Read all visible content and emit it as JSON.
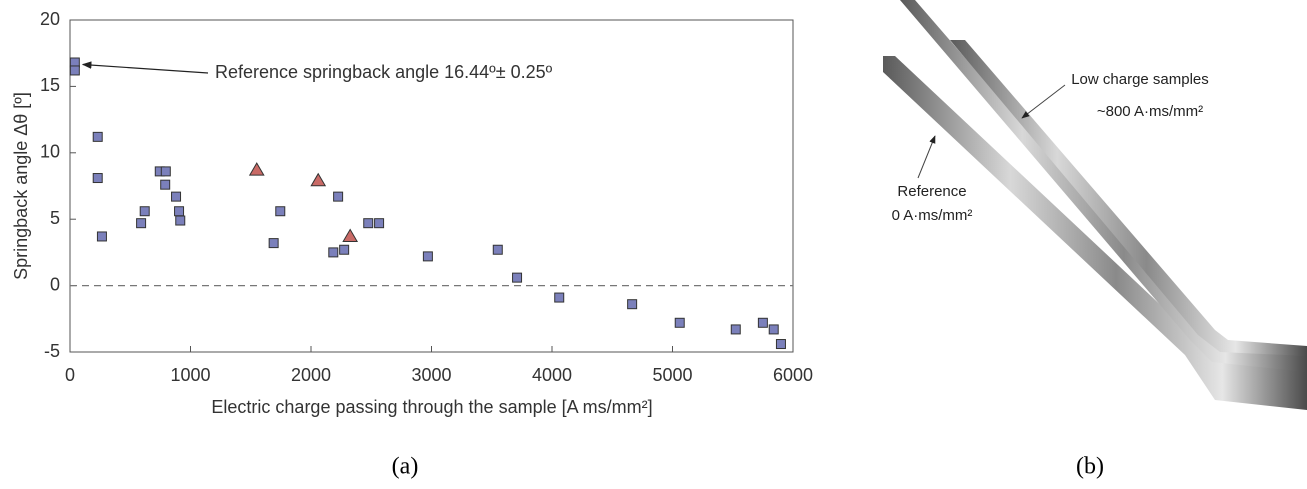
{
  "chart_data": {
    "type": "scatter",
    "xlabel": "Electric charge passing through the sample [A ms/mm²]",
    "ylabel": "Springback angle Δθ [º]",
    "annotation": "Reference springback angle 16.44º± 0.25º",
    "panel_label": "(a)",
    "xlim": [
      0,
      6000
    ],
    "ylim": [
      -5,
      20
    ],
    "xticks": [
      0,
      1000,
      2000,
      3000,
      4000,
      5000,
      6000
    ],
    "yticks": [
      -5,
      0,
      5,
      10,
      15,
      20
    ],
    "hline": 0,
    "series": [
      {
        "color": "#7b80bb",
        "marker": "square",
        "x": [
          40,
          40,
          230,
          230,
          265,
          590,
          620,
          745,
          795,
          790,
          880,
          905,
          915,
          1690,
          1745,
          2185,
          2225,
          2275,
          2475,
          2565,
          2970,
          3550,
          3710,
          4060,
          4665,
          5060,
          5525,
          5750,
          5840,
          5900
        ],
        "values": [
          16.8,
          16.2,
          11.2,
          8.1,
          3.7,
          4.7,
          5.6,
          8.6,
          8.6,
          7.6,
          6.7,
          5.6,
          4.9,
          3.2,
          5.6,
          2.5,
          6.7,
          2.7,
          4.7,
          4.7,
          2.2,
          2.7,
          0.6,
          -0.9,
          -1.4,
          -2.8,
          -3.3,
          -2.8,
          -3.3,
          -4.4
        ]
      },
      {
        "color": "#c96a66",
        "marker": "triangle",
        "x": [
          1550,
          2060,
          2325
        ],
        "values": [
          8.7,
          7.9,
          3.7
        ]
      }
    ]
  },
  "photo": {
    "panel_label": "(b)",
    "low_charge_label": "Low charge samples",
    "low_charge_value": "~800 A·ms/mm²",
    "reference_label": "Reference",
    "reference_value": "0 A·ms/mm²"
  }
}
